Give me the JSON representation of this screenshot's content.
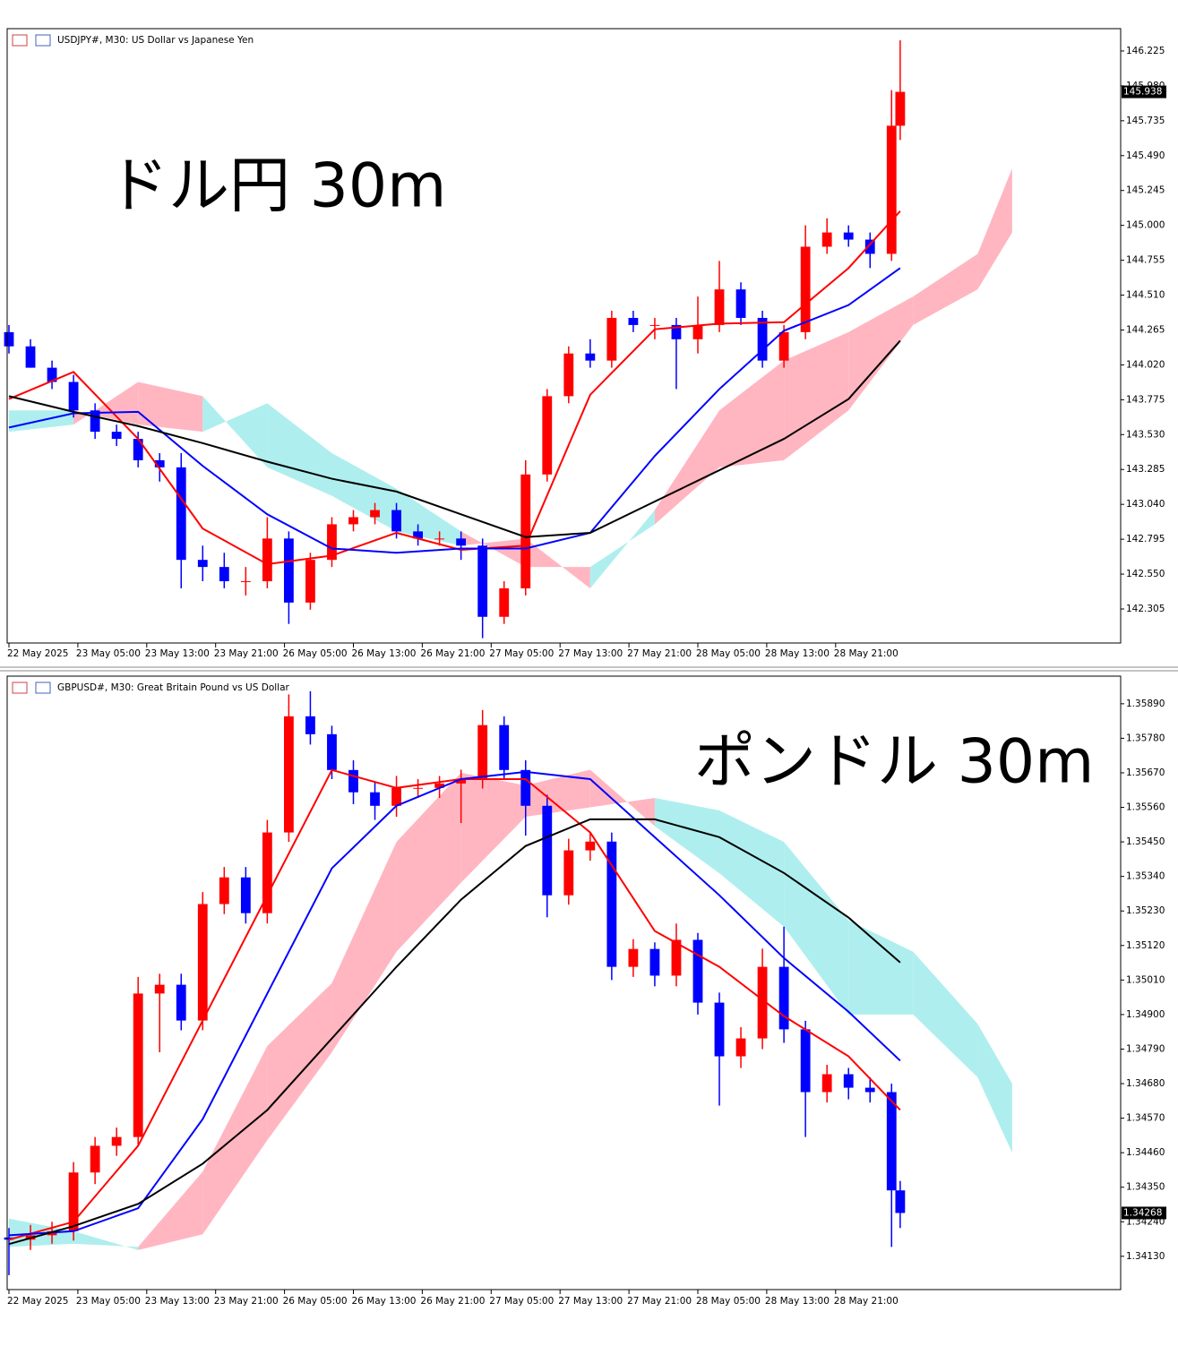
{
  "chart_data": [
    {
      "type": "candlestick",
      "title": "USDJPY#, M30:  US Dollar vs Japanese Yen",
      "annotation": "ドル円 30m",
      "x": [
        0,
        5,
        10,
        15,
        20,
        25,
        30,
        35,
        40,
        45,
        50,
        55,
        60,
        65,
        70,
        75,
        80,
        85,
        90,
        95,
        100,
        105,
        110,
        115,
        120,
        125,
        130,
        135,
        140,
        145,
        150,
        155,
        160,
        165,
        170,
        175,
        180,
        185,
        190,
        195,
        200,
        205,
        207
      ],
      "open": [
        144.25,
        144.15,
        144.0,
        143.9,
        143.7,
        143.55,
        143.5,
        143.35,
        143.3,
        142.65,
        142.6,
        142.5,
        142.5,
        142.8,
        142.35,
        142.65,
        142.9,
        142.95,
        143.0,
        142.85,
        142.8,
        142.8,
        142.75,
        142.25,
        142.45,
        143.25,
        143.8,
        144.1,
        144.05,
        144.35,
        144.3,
        144.3,
        144.2,
        144.3,
        144.55,
        144.35,
        144.05,
        144.25,
        144.85,
        144.95,
        144.9,
        144.8,
        145.7
      ],
      "high": [
        144.3,
        144.2,
        144.05,
        143.95,
        143.75,
        143.6,
        143.55,
        143.4,
        143.4,
        142.75,
        142.7,
        142.6,
        142.95,
        142.85,
        142.7,
        142.95,
        143.0,
        143.05,
        143.05,
        142.9,
        142.85,
        142.85,
        142.8,
        142.5,
        143.35,
        143.85,
        144.15,
        144.2,
        144.4,
        144.4,
        144.35,
        144.35,
        144.5,
        144.75,
        144.6,
        144.4,
        144.3,
        145.0,
        145.05,
        145.0,
        144.95,
        145.95,
        146.3
      ],
      "low": [
        144.1,
        144.0,
        143.85,
        143.65,
        143.5,
        143.45,
        143.3,
        143.2,
        142.45,
        142.5,
        142.45,
        142.4,
        142.45,
        142.2,
        142.3,
        142.6,
        142.85,
        142.9,
        142.8,
        142.75,
        142.75,
        142.65,
        142.1,
        142.2,
        142.4,
        143.2,
        143.75,
        144.0,
        144.0,
        144.25,
        144.2,
        143.85,
        144.1,
        144.25,
        144.3,
        144.0,
        144.0,
        144.2,
        144.8,
        144.85,
        144.7,
        144.75,
        145.6
      ],
      "close": [
        144.15,
        144.0,
        143.9,
        143.7,
        143.55,
        143.5,
        143.35,
        143.3,
        142.65,
        142.6,
        142.5,
        142.5,
        142.8,
        142.35,
        142.65,
        142.9,
        142.95,
        143.0,
        142.85,
        142.8,
        142.8,
        142.75,
        142.25,
        142.45,
        143.25,
        143.8,
        144.1,
        144.05,
        144.35,
        144.3,
        144.3,
        144.2,
        144.3,
        144.55,
        144.35,
        144.05,
        144.25,
        144.85,
        144.95,
        144.9,
        144.8,
        145.7,
        145.938
      ],
      "up_color": "#ff0000",
      "down_color": "#0000ff",
      "line_x": [
        0,
        15,
        30,
        45,
        60,
        75,
        90,
        105,
        120,
        135,
        150,
        165,
        180,
        195,
        207
      ],
      "lines": [
        {
          "color": "#ff0000",
          "values": [
            143.78,
            143.97,
            143.5,
            142.87,
            142.62,
            142.68,
            142.84,
            142.72,
            142.75,
            143.81,
            144.27,
            144.31,
            144.32,
            144.7,
            145.1
          ]
        },
        {
          "color": "#0000ff",
          "values": [
            143.58,
            143.68,
            143.69,
            143.31,
            142.97,
            142.73,
            142.7,
            142.73,
            142.73,
            142.84,
            143.38,
            143.85,
            144.26,
            144.44,
            144.7
          ]
        },
        {
          "color": "#000000",
          "values": [
            143.8,
            143.69,
            143.59,
            143.47,
            143.34,
            143.22,
            143.13,
            142.97,
            142.81,
            142.84,
            143.06,
            143.28,
            143.5,
            143.78,
            144.19
          ]
        }
      ],
      "cloud": {
        "x": [
          0,
          15,
          30,
          45,
          60,
          75,
          90,
          105,
          120,
          135,
          150,
          165,
          180,
          195,
          210,
          225,
          233
        ],
        "span_a": [
          143.55,
          143.6,
          143.9,
          143.8,
          143.3,
          143.1,
          142.85,
          142.75,
          142.8,
          142.45,
          143.0,
          143.7,
          144.05,
          144.25,
          144.5,
          144.8,
          145.4
        ],
        "span_b": [
          143.7,
          143.7,
          143.6,
          143.55,
          143.75,
          143.4,
          143.15,
          142.85,
          142.6,
          142.6,
          142.9,
          143.3,
          143.35,
          143.7,
          144.3,
          144.55,
          144.95
        ],
        "up_color": "#ffb6c1",
        "down_color": "#afeeee"
      },
      "xlim": [
        0,
        258
      ],
      "ylim": [
        142.066,
        146.382
      ],
      "yticks": [
        146.225,
        {
          "value": 145.98,
          "label": "145.980"
        },
        145.735,
        {
          "value": 145.49,
          "label": "145.490"
        },
        145.245,
        {
          "value": 145,
          "label": "145.000"
        },
        144.755,
        {
          "value": 144.51,
          "label": "144.510"
        },
        144.265,
        {
          "value": 144.02,
          "label": "144.020"
        },
        143.775,
        {
          "value": 143.53,
          "label": "143.530"
        },
        143.285,
        {
          "value": 143.04,
          "label": "143.040"
        },
        142.795,
        {
          "value": 142.55,
          "label": "142.550"
        },
        142.305
      ],
      "xticks": [
        {
          "value": 0,
          "label": "22 May 2025"
        },
        {
          "value": 16,
          "label": "23 May 05:00"
        },
        {
          "value": 32,
          "label": "23 May 13:00"
        },
        {
          "value": 48,
          "label": "23 May 21:00"
        },
        {
          "value": 64,
          "label": "26 May 05:00"
        },
        {
          "value": 80,
          "label": "26 May 13:00"
        },
        {
          "value": 96,
          "label": "26 May 21:00"
        },
        {
          "value": 112,
          "label": "27 May 05:00"
        },
        {
          "value": 128,
          "label": "27 May 13:00"
        },
        {
          "value": 144,
          "label": "27 May 21:00"
        },
        {
          "value": 160,
          "label": "28 May 05:00"
        },
        {
          "value": 176,
          "label": "28 May 13:00"
        },
        {
          "value": 192,
          "label": "28 May 21:00"
        }
      ]
    },
    {
      "type": "candlestick",
      "title": "GBPUSD#, M30:  Great Britain Pound vs US Dollar",
      "annotation": "ポンドル 30m",
      "x": [
        0,
        5,
        10,
        15,
        20,
        25,
        30,
        35,
        40,
        45,
        50,
        55,
        60,
        65,
        70,
        75,
        80,
        85,
        90,
        95,
        100,
        105,
        110,
        115,
        120,
        125,
        130,
        135,
        140,
        145,
        150,
        155,
        160,
        165,
        170,
        175,
        180,
        185,
        190,
        195,
        200,
        205,
        207
      ],
      "open": [
        1.3419,
        1.34183,
        1.34197,
        1.3421,
        1.34397,
        1.34482,
        1.3451,
        1.34967,
        1.34995,
        1.34881,
        1.35252,
        1.35337,
        1.35223,
        1.3548,
        1.3585,
        1.35793,
        1.35679,
        1.35608,
        1.35565,
        1.35622,
        1.35622,
        1.35636,
        1.3565,
        1.35822,
        1.35679,
        1.35565,
        1.3528,
        1.35423,
        1.35451,
        1.35052,
        1.35109,
        1.35024,
        1.35138,
        1.34938,
        1.34767,
        1.34824,
        1.35052,
        1.34853,
        1.34653,
        1.3471,
        1.34667,
        1.34653,
        1.3434
      ],
      "high": [
        1.3422,
        1.3423,
        1.3424,
        1.3443,
        1.3451,
        1.3454,
        1.3502,
        1.3503,
        1.3503,
        1.3529,
        1.3537,
        1.3537,
        1.3552,
        1.3592,
        1.3593,
        1.3582,
        1.3571,
        1.3564,
        1.3566,
        1.3565,
        1.3566,
        1.3568,
        1.3587,
        1.3585,
        1.3571,
        1.356,
        1.3546,
        1.3548,
        1.3548,
        1.3514,
        1.3513,
        1.3519,
        1.3516,
        1.3497,
        1.3486,
        1.3511,
        1.3518,
        1.3488,
        1.3474,
        1.3473,
        1.347,
        1.3468,
        1.3437
      ],
      "low": [
        1.3407,
        1.3415,
        1.3417,
        1.3418,
        1.3436,
        1.3445,
        1.3448,
        1.3478,
        1.3485,
        1.3485,
        1.3522,
        1.3519,
        1.3519,
        1.3545,
        1.3576,
        1.3565,
        1.3557,
        1.3552,
        1.3553,
        1.3559,
        1.3559,
        1.3551,
        1.3562,
        1.3565,
        1.3547,
        1.3521,
        1.3525,
        1.3539,
        1.3501,
        1.3502,
        1.3499,
        1.3499,
        1.349,
        1.3461,
        1.3473,
        1.3479,
        1.3481,
        1.3451,
        1.3462,
        1.3463,
        1.3462,
        1.3416,
        1.3422
      ],
      "close": [
        1.34183,
        1.34197,
        1.3421,
        1.34397,
        1.34482,
        1.3451,
        1.34967,
        1.34995,
        1.34881,
        1.35252,
        1.35337,
        1.35223,
        1.3548,
        1.3585,
        1.35793,
        1.35679,
        1.35608,
        1.35565,
        1.35622,
        1.35622,
        1.35636,
        1.3565,
        1.35822,
        1.35679,
        1.35565,
        1.3528,
        1.35423,
        1.35451,
        1.35052,
        1.35109,
        1.35024,
        1.35138,
        1.34938,
        1.34767,
        1.34824,
        1.35052,
        1.34853,
        1.34653,
        1.3471,
        1.34667,
        1.34653,
        1.3434,
        1.34268
      ],
      "up_color": "#ff0000",
      "down_color": "#0000ff",
      "line_x": [
        0,
        15,
        30,
        45,
        60,
        75,
        90,
        105,
        120,
        135,
        150,
        165,
        180,
        195,
        207
      ],
      "lines": [
        {
          "color": "#ff0000",
          "values": [
            1.34183,
            1.3424,
            1.34482,
            1.34881,
            1.3528,
            1.35679,
            1.35622,
            1.3565,
            1.3565,
            1.3548,
            1.35166,
            1.35052,
            1.34895,
            1.34767,
            1.34596
          ]
        },
        {
          "color": "#0000ff",
          "values": [
            1.34197,
            1.3421,
            1.34283,
            1.34567,
            1.34967,
            1.35366,
            1.35565,
            1.3565,
            1.35673,
            1.3565,
            1.35465,
            1.3528,
            1.3508,
            1.34909,
            1.34753
          ]
        },
        {
          "color": "#000000",
          "values": [
            1.34169,
            1.34226,
            1.34297,
            1.34425,
            1.34596,
            1.34824,
            1.35052,
            1.35266,
            1.35437,
            1.35522,
            1.35522,
            1.35465,
            1.35351,
            1.35209,
            1.35066
          ]
        }
      ],
      "cloud": {
        "x": [
          0,
          15,
          30,
          45,
          60,
          75,
          90,
          105,
          120,
          135,
          150,
          165,
          180,
          195,
          210,
          225,
          233
        ],
        "span_a": [
          1.3416,
          1.3417,
          1.3416,
          1.344,
          1.348,
          1.35,
          1.3545,
          1.3567,
          1.3563,
          1.3568,
          1.355,
          1.3535,
          1.3518,
          1.349,
          1.349,
          1.347,
          1.3446
        ],
        "span_b": [
          1.3425,
          1.3421,
          1.3415,
          1.342,
          1.345,
          1.3478,
          1.351,
          1.3532,
          1.3553,
          1.3556,
          1.3559,
          1.3555,
          1.3545,
          1.352,
          1.351,
          1.3487,
          1.3468
        ],
        "up_color": "#ffb6c1",
        "down_color": "#afeeee"
      },
      "xlim": [
        0,
        258
      ],
      "ylim": [
        1.34024,
        1.35978
      ],
      "yticks": [
        {
          "value": 1.3589,
          "label": "1.35890"
        },
        {
          "value": 1.3578,
          "label": "1.35780"
        },
        {
          "value": 1.3567,
          "label": "1.35670"
        },
        {
          "value": 1.3556,
          "label": "1.35560"
        },
        {
          "value": 1.3545,
          "label": "1.35450"
        },
        {
          "value": 1.3534,
          "label": "1.35340"
        },
        {
          "value": 1.3523,
          "label": "1.35230"
        },
        {
          "value": 1.3512,
          "label": "1.35120"
        },
        {
          "value": 1.3501,
          "label": "1.35010"
        },
        {
          "value": 1.349,
          "label": "1.34900"
        },
        {
          "value": 1.3479,
          "label": "1.34790"
        },
        {
          "value": 1.3468,
          "label": "1.34680"
        },
        {
          "value": 1.3457,
          "label": "1.34570"
        },
        {
          "value": 1.3446,
          "label": "1.34460"
        },
        {
          "value": 1.3435,
          "label": "1.34350"
        },
        {
          "value": 1.3424,
          "label": "1.34240"
        },
        {
          "value": 1.3413,
          "label": "1.34130"
        }
      ],
      "xticks": [
        {
          "value": 0,
          "label": "22 May 2025"
        },
        {
          "value": 16,
          "label": "23 May 05:00"
        },
        {
          "value": 32,
          "label": "23 May 13:00"
        },
        {
          "value": 48,
          "label": "23 May 21:00"
        },
        {
          "value": 64,
          "label": "26 May 05:00"
        },
        {
          "value": 80,
          "label": "26 May 13:00"
        },
        {
          "value": 96,
          "label": "26 May 21:00"
        },
        {
          "value": 112,
          "label": "27 May 05:00"
        },
        {
          "value": 128,
          "label": "27 May 13:00"
        },
        {
          "value": 144,
          "label": "27 May 21:00"
        },
        {
          "value": 160,
          "label": "28 May 05:00"
        },
        {
          "value": 176,
          "label": "28 May 13:00"
        },
        {
          "value": 192,
          "label": "28 May 21:00"
        }
      ]
    }
  ]
}
